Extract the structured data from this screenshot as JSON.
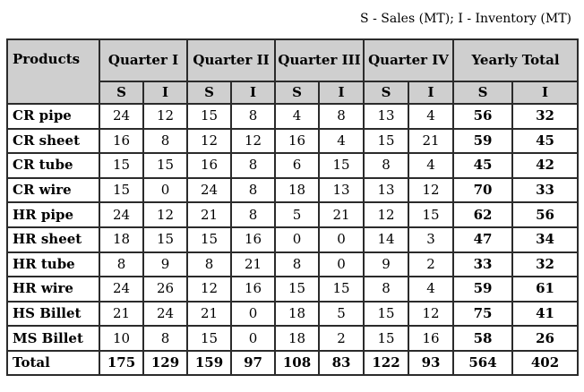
{
  "note": "S - Sales (MT); I - Inventory (MT)",
  "chart_data": {
    "type": "table",
    "header": {
      "products": "Products",
      "groups": [
        "Quarter I",
        "Quarter II",
        "Quarter III",
        "Quarter IV",
        "Yearly Total"
      ],
      "sub": [
        "S",
        "I"
      ]
    },
    "rows": [
      {
        "product": "CR pipe",
        "values": [
          24,
          12,
          15,
          8,
          4,
          8,
          13,
          4,
          56,
          32
        ]
      },
      {
        "product": "CR sheet",
        "values": [
          16,
          8,
          12,
          12,
          16,
          4,
          15,
          21,
          59,
          45
        ]
      },
      {
        "product": "CR tube",
        "values": [
          15,
          15,
          16,
          8,
          6,
          15,
          8,
          4,
          45,
          42
        ]
      },
      {
        "product": "CR wire",
        "values": [
          15,
          0,
          24,
          8,
          18,
          13,
          13,
          12,
          70,
          33
        ]
      },
      {
        "product": "HR pipe",
        "values": [
          24,
          12,
          21,
          8,
          5,
          21,
          12,
          15,
          62,
          56
        ]
      },
      {
        "product": "HR sheet",
        "values": [
          18,
          15,
          15,
          16,
          0,
          0,
          14,
          3,
          47,
          34
        ]
      },
      {
        "product": "HR tube",
        "values": [
          8,
          9,
          8,
          21,
          8,
          0,
          9,
          2,
          33,
          32
        ]
      },
      {
        "product": "HR wire",
        "values": [
          24,
          26,
          12,
          16,
          15,
          15,
          8,
          4,
          59,
          61
        ]
      },
      {
        "product": "HS Billet",
        "values": [
          21,
          24,
          21,
          0,
          18,
          5,
          15,
          12,
          75,
          41
        ]
      },
      {
        "product": "MS Billet",
        "values": [
          10,
          8,
          15,
          0,
          18,
          2,
          15,
          16,
          58,
          26
        ]
      }
    ],
    "total": {
      "label": "Total",
      "values": [
        175,
        129,
        159,
        97,
        108,
        83,
        122,
        93,
        564,
        402
      ]
    }
  }
}
